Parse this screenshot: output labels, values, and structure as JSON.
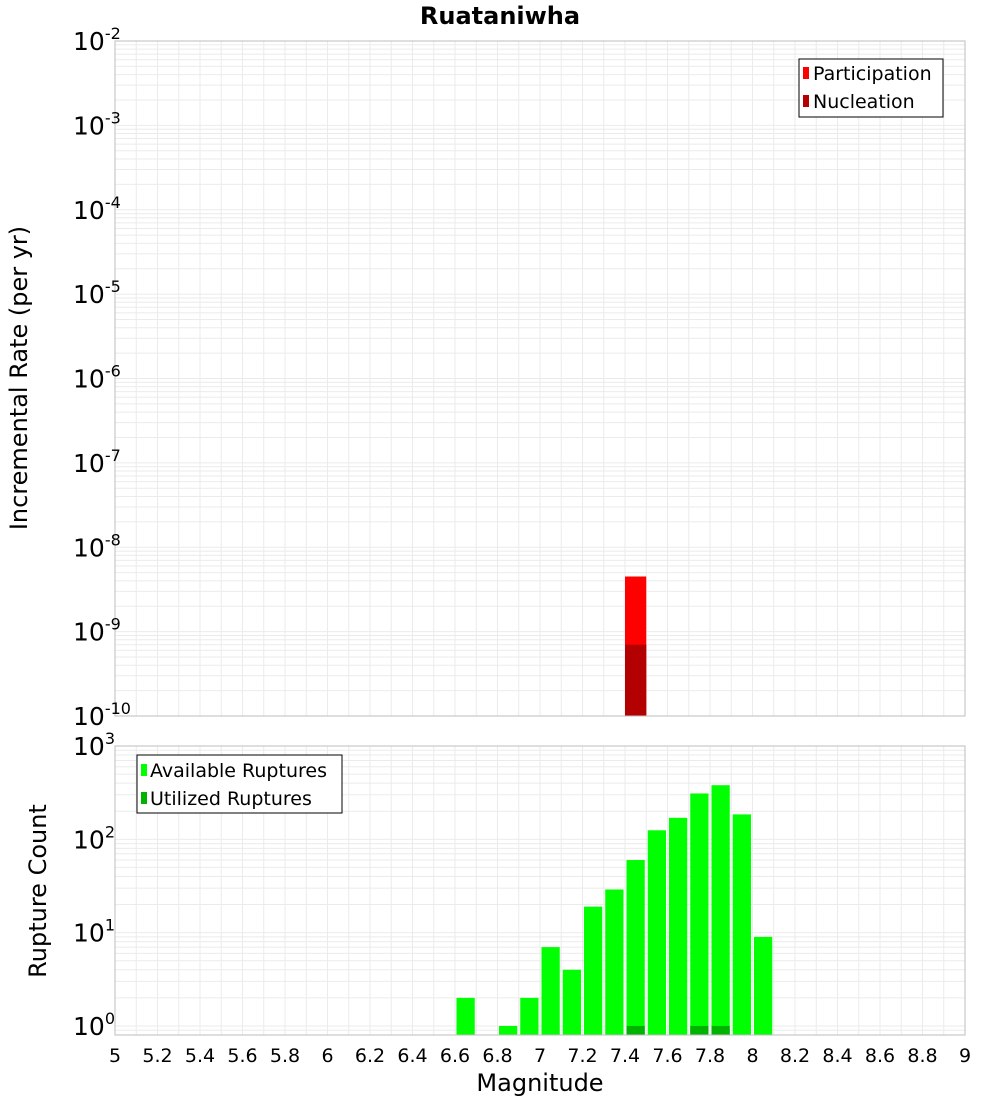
{
  "chart_data": [
    {
      "type": "bar",
      "title": "Ruataniwha",
      "ylabel": "Incremental Rate (per yr)",
      "xlabel": "",
      "x_range": [
        5,
        9
      ],
      "y_scale": "log",
      "ylim": [
        1e-10,
        0.01
      ],
      "y_ticks": [
        {
          "base": "10",
          "exp": "-2"
        },
        {
          "base": "10",
          "exp": "-3"
        },
        {
          "base": "10",
          "exp": "-4"
        },
        {
          "base": "10",
          "exp": "-5"
        },
        {
          "base": "10",
          "exp": "-6"
        },
        {
          "base": "10",
          "exp": "-7"
        },
        {
          "base": "10",
          "exp": "-8"
        },
        {
          "base": "10",
          "exp": "-9"
        },
        {
          "base": "10",
          "exp": "-10"
        }
      ],
      "bin_width": 0.1,
      "grid": true,
      "legend_position": "top-right",
      "series": [
        {
          "name": "Participation",
          "color": "#ff0000",
          "x": [
            7.45
          ],
          "values": [
            4.5e-09
          ]
        },
        {
          "name": "Nucleation",
          "color": "#b30000",
          "x": [
            7.45
          ],
          "values": [
            7e-10
          ]
        }
      ]
    },
    {
      "type": "bar",
      "title": "",
      "ylabel": "Rupture Count",
      "xlabel": "Magnitude",
      "x_range": [
        5,
        9
      ],
      "x_ticks": [
        "5",
        "5.2",
        "5.4",
        "5.6",
        "5.8",
        "6",
        "6.2",
        "6.4",
        "6.6",
        "6.8",
        "7",
        "7.2",
        "7.4",
        "7.6",
        "7.8",
        "8",
        "8.2",
        "8.4",
        "8.6",
        "8.8",
        "9"
      ],
      "y_scale": "log",
      "ylim": [
        0.8,
        1000
      ],
      "y_ticks": [
        {
          "base": "10",
          "exp": "3",
          "value": 1000
        },
        {
          "base": "10",
          "exp": "2",
          "value": 100
        },
        {
          "base": "10",
          "exp": "1",
          "value": 10
        },
        {
          "base": "10",
          "exp": "0",
          "value": 1
        }
      ],
      "bin_width": 0.1,
      "grid": true,
      "legend_position": "top-left",
      "series": [
        {
          "name": "Available Ruptures",
          "color": "#00ff00",
          "x": [
            6.65,
            6.85,
            6.95,
            7.05,
            7.15,
            7.25,
            7.35,
            7.45,
            7.55,
            7.65,
            7.75,
            7.85,
            7.95,
            8.05
          ],
          "values": [
            2,
            1,
            2,
            7,
            4,
            19,
            29,
            60,
            125,
            170,
            310,
            380,
            185,
            9
          ]
        },
        {
          "name": "Utilized Ruptures",
          "color": "#00b300",
          "x": [
            7.45,
            7.75,
            7.85
          ],
          "values": [
            1,
            1,
            1
          ]
        }
      ]
    }
  ]
}
